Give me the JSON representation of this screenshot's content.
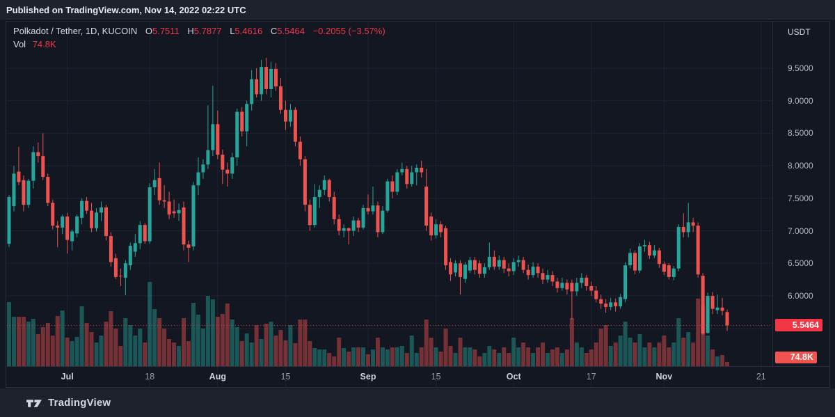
{
  "top_bar": {
    "text": "Published on TradingView.com, Nov 14, 2022 02:22 UTC"
  },
  "header": {
    "title": "Polkadot / Tether, 1D, KUCOIN",
    "o_label": "O",
    "o": "5.7511",
    "h_label": "H",
    "h": "5.7877",
    "l_label": "L",
    "l": "5.4616",
    "c_label": "C",
    "c": "5.5464",
    "change": "−0.2055 (−3.57%)",
    "vol_label": "Vol",
    "vol_value": "74.8K"
  },
  "price_axis": {
    "currency": "USDT",
    "tick_labels": [
      "9.5000",
      "9.0000",
      "8.5000",
      "8.0000",
      "7.5000",
      "7.0000",
      "6.5000",
      "6.0000"
    ],
    "last_price_badge": "5.5464",
    "volume_badge": "74.8K"
  },
  "footer": {
    "brand": "TradingView"
  },
  "colors": {
    "background": "#131722",
    "panel": "#1e222d",
    "border": "#2a2e39",
    "grid": "#1e2331",
    "up": "#26a69a",
    "down": "#ef5350",
    "up_volume": "rgba(38,166,154,0.45)",
    "down_volume": "rgba(239,83,80,0.45)",
    "accent_red": "#f23645",
    "text_primary": "#d1d4dc",
    "text_secondary": "#9598a1"
  },
  "chart_data": {
    "type": "candlestick_with_volume",
    "symbol": "Polkadot / Tether",
    "interval": "1D",
    "exchange": "KUCOIN",
    "quote_currency": "USDT",
    "legend_position": "top-left",
    "grid": true,
    "last_price": 5.5464,
    "last_volume_k": 74.8,
    "current_bar": {
      "open": 5.7511,
      "high": 5.7877,
      "low": 5.4616,
      "close": 5.5464,
      "change": -0.2055,
      "change_pct": -3.57,
      "volume": "74.8K"
    },
    "price_ticks": [
      9.5,
      9.0,
      8.5,
      8.0,
      7.5,
      7.0,
      6.5,
      6.0
    ],
    "unlabeled_grid": [
      5.5
    ],
    "ylim": [
      5.3,
      9.9
    ],
    "volume_unit": "K",
    "time_ticks": [
      {
        "label": "Jul",
        "index": 12,
        "major": true
      },
      {
        "label": "18",
        "index": 29,
        "major": false
      },
      {
        "label": "Aug",
        "index": 43,
        "major": true
      },
      {
        "label": "15",
        "index": 57,
        "major": false
      },
      {
        "label": "Sep",
        "index": 74,
        "major": true
      },
      {
        "label": "15",
        "index": 88,
        "major": false
      },
      {
        "label": "Oct",
        "index": 104,
        "major": true
      },
      {
        "label": "17",
        "index": 120,
        "major": false
      },
      {
        "label": "Nov",
        "index": 135,
        "major": true
      },
      {
        "label": "21",
        "index": 155,
        "major": false
      }
    ],
    "candles_format": [
      "open",
      "high",
      "low",
      "close",
      "volume_k"
    ],
    "candles": [
      [
        6.8,
        7.55,
        6.75,
        7.52,
        995
      ],
      [
        7.38,
        8.0,
        7.3,
        7.88,
        770
      ],
      [
        7.91,
        8.29,
        7.7,
        7.75,
        770
      ],
      [
        7.78,
        7.85,
        7.3,
        7.4,
        770
      ],
      [
        7.4,
        7.8,
        7.35,
        7.77,
        695
      ],
      [
        7.77,
        8.3,
        7.65,
        8.21,
        738
      ],
      [
        8.21,
        8.36,
        8.05,
        8.15,
        503
      ],
      [
        8.15,
        8.5,
        7.78,
        7.83,
        610
      ],
      [
        7.83,
        7.88,
        7.38,
        7.43,
        674
      ],
      [
        7.43,
        7.48,
        7.02,
        7.08,
        481
      ],
      [
        7.08,
        7.15,
        6.75,
        7.05,
        781
      ],
      [
        7.05,
        7.25,
        6.95,
        7.22,
        866
      ],
      [
        7.22,
        7.28,
        6.65,
        6.86,
        449
      ],
      [
        6.84,
        7.02,
        6.7,
        6.99,
        396
      ],
      [
        6.96,
        7.25,
        6.9,
        7.22,
        460
      ],
      [
        7.2,
        7.5,
        7.1,
        7.46,
        931
      ],
      [
        7.46,
        7.52,
        7.26,
        7.31,
        674
      ],
      [
        7.31,
        7.43,
        6.98,
        7.04,
        535
      ],
      [
        7.04,
        7.35,
        6.99,
        7.28,
        374
      ],
      [
        7.28,
        7.45,
        7.15,
        7.36,
        481
      ],
      [
        7.36,
        7.4,
        6.85,
        6.92,
        695
      ],
      [
        6.92,
        6.98,
        6.45,
        6.52,
        856
      ],
      [
        6.58,
        6.65,
        6.26,
        6.29,
        588
      ],
      [
        6.31,
        6.42,
        6.15,
        6.3,
        321
      ],
      [
        6.28,
        6.55,
        6.01,
        6.5,
        749
      ],
      [
        6.47,
        6.82,
        6.4,
        6.77,
        642
      ],
      [
        6.68,
        6.95,
        6.6,
        6.81,
        481
      ],
      [
        6.81,
        7.15,
        6.72,
        7.09,
        588
      ],
      [
        7.09,
        7.12,
        6.8,
        6.84,
        374
      ],
      [
        6.84,
        7.73,
        6.8,
        7.67,
        1305
      ],
      [
        7.67,
        7.95,
        7.55,
        7.78,
        888
      ],
      [
        7.81,
        8.05,
        7.4,
        7.47,
        749
      ],
      [
        7.47,
        7.7,
        7.35,
        7.45,
        588
      ],
      [
        7.45,
        7.6,
        7.18,
        7.25,
        428
      ],
      [
        7.3,
        7.48,
        7.2,
        7.27,
        374
      ],
      [
        7.27,
        7.42,
        7.15,
        7.32,
        321
      ],
      [
        7.36,
        7.45,
        6.7,
        6.79,
        749
      ],
      [
        6.79,
        6.85,
        6.52,
        6.74,
        396
      ],
      [
        6.76,
        7.75,
        6.7,
        7.7,
        984
      ],
      [
        7.7,
        8.13,
        7.55,
        7.9,
        803
      ],
      [
        7.9,
        8.1,
        7.8,
        8.02,
        588
      ],
      [
        8.02,
        8.93,
        7.95,
        8.24,
        1091
      ],
      [
        8.24,
        9.23,
        8.15,
        8.64,
        1038
      ],
      [
        8.64,
        8.85,
        8.1,
        8.17,
        770
      ],
      [
        8.17,
        8.25,
        7.72,
        7.94,
        813
      ],
      [
        7.94,
        8.05,
        7.68,
        7.88,
        974
      ],
      [
        7.88,
        8.2,
        7.8,
        8.13,
        728
      ],
      [
        8.13,
        8.88,
        8.0,
        8.83,
        610
      ],
      [
        8.83,
        8.9,
        8.45,
        8.53,
        396
      ],
      [
        8.53,
        9.0,
        8.3,
        8.95,
        514
      ],
      [
        8.95,
        9.47,
        8.85,
        9.33,
        374
      ],
      [
        9.33,
        9.5,
        9.05,
        9.1,
        642
      ],
      [
        9.1,
        9.63,
        9.0,
        9.52,
        428
      ],
      [
        9.52,
        9.66,
        9.1,
        9.18,
        663
      ],
      [
        9.18,
        9.6,
        9.05,
        9.49,
        695
      ],
      [
        9.49,
        9.58,
        9.15,
        9.22,
        481
      ],
      [
        9.22,
        9.35,
        8.8,
        8.86,
        567
      ],
      [
        8.86,
        9.0,
        8.55,
        8.68,
        407
      ],
      [
        8.68,
        8.95,
        8.6,
        8.86,
        642
      ],
      [
        8.86,
        8.9,
        8.3,
        8.37,
        364
      ],
      [
        8.37,
        8.45,
        8.0,
        8.1,
        728
      ],
      [
        8.1,
        8.15,
        7.3,
        7.4,
        728
      ],
      [
        7.4,
        7.48,
        7.0,
        7.09,
        396
      ],
      [
        7.09,
        7.72,
        7.05,
        7.52,
        289
      ],
      [
        7.52,
        7.7,
        7.35,
        7.63,
        268
      ],
      [
        7.63,
        7.85,
        7.55,
        7.78,
        268
      ],
      [
        7.78,
        7.8,
        7.45,
        7.52,
        214
      ],
      [
        7.52,
        7.6,
        7.1,
        7.18,
        160
      ],
      [
        7.18,
        7.25,
        6.93,
        7.0,
        449
      ],
      [
        7.0,
        7.1,
        6.9,
        7.04,
        289
      ],
      [
        7.04,
        7.05,
        6.79,
        7.0,
        235
      ],
      [
        7.0,
        7.22,
        6.92,
        7.16,
        300
      ],
      [
        7.16,
        7.2,
        6.98,
        7.05,
        300
      ],
      [
        7.05,
        7.4,
        7.02,
        7.35,
        300
      ],
      [
        7.35,
        7.56,
        7.25,
        7.3,
        193
      ],
      [
        7.3,
        7.68,
        7.25,
        7.39,
        268
      ],
      [
        7.39,
        7.45,
        6.9,
        6.98,
        449
      ],
      [
        6.98,
        7.38,
        6.95,
        7.31,
        300
      ],
      [
        7.31,
        7.8,
        7.28,
        7.76,
        268
      ],
      [
        7.76,
        7.85,
        7.5,
        7.6,
        300
      ],
      [
        7.6,
        7.95,
        7.55,
        7.9,
        300
      ],
      [
        7.9,
        8.05,
        7.85,
        7.95,
        321
      ],
      [
        7.95,
        8.0,
        7.65,
        7.72,
        214
      ],
      [
        7.72,
        8.0,
        7.68,
        7.9,
        481
      ],
      [
        7.9,
        8.02,
        7.7,
        7.97,
        214
      ],
      [
        7.97,
        8.08,
        7.82,
        7.9,
        300
      ],
      [
        7.68,
        7.95,
        7.0,
        7.08,
        728
      ],
      [
        7.22,
        7.28,
        6.85,
        6.93,
        449
      ],
      [
        6.93,
        7.18,
        6.88,
        7.1,
        300
      ],
      [
        7.1,
        7.15,
        6.9,
        6.98,
        235
      ],
      [
        7.04,
        7.08,
        6.4,
        6.47,
        588
      ],
      [
        6.52,
        6.58,
        6.23,
        6.33,
        321
      ],
      [
        6.36,
        6.55,
        6.3,
        6.5,
        214
      ],
      [
        6.5,
        6.55,
        6.02,
        6.29,
        449
      ],
      [
        6.26,
        6.52,
        6.2,
        6.48,
        300
      ],
      [
        6.39,
        6.6,
        6.35,
        6.55,
        300
      ],
      [
        6.55,
        6.6,
        6.33,
        6.4,
        268
      ],
      [
        6.5,
        6.55,
        6.28,
        6.34,
        160
      ],
      [
        6.34,
        6.5,
        6.28,
        6.44,
        214
      ],
      [
        6.44,
        6.82,
        6.4,
        6.6,
        321
      ],
      [
        6.6,
        6.7,
        6.4,
        6.45,
        268
      ],
      [
        6.45,
        6.62,
        6.4,
        6.55,
        214
      ],
      [
        6.55,
        6.6,
        6.35,
        6.42,
        300
      ],
      [
        6.42,
        6.5,
        6.3,
        6.38,
        214
      ],
      [
        6.38,
        6.58,
        6.32,
        6.52,
        449
      ],
      [
        6.52,
        6.62,
        6.45,
        6.55,
        300
      ],
      [
        6.55,
        6.6,
        6.35,
        6.4,
        374
      ],
      [
        6.4,
        6.48,
        6.25,
        6.32,
        300
      ],
      [
        6.32,
        6.52,
        6.28,
        6.45,
        214
      ],
      [
        6.45,
        6.5,
        6.28,
        6.35,
        300
      ],
      [
        6.35,
        6.42,
        6.18,
        6.25,
        374
      ],
      [
        6.25,
        6.4,
        6.2,
        6.32,
        214
      ],
      [
        6.32,
        6.38,
        6.15,
        6.22,
        268
      ],
      [
        6.22,
        6.28,
        6.05,
        6.12,
        300
      ],
      [
        6.12,
        6.28,
        6.08,
        6.2,
        214
      ],
      [
        6.2,
        6.25,
        6.02,
        6.1,
        268
      ],
      [
        6.2,
        6.25,
        5.64,
        6.07,
        749
      ],
      [
        6.07,
        6.28,
        6.0,
        6.2,
        374
      ],
      [
        6.2,
        6.35,
        6.12,
        6.28,
        300
      ],
      [
        6.28,
        6.32,
        6.08,
        6.15,
        214
      ],
      [
        6.15,
        6.22,
        6.0,
        6.08,
        268
      ],
      [
        6.08,
        6.15,
        5.9,
        5.95,
        374
      ],
      [
        5.95,
        6.02,
        5.8,
        5.88,
        588
      ],
      [
        5.88,
        5.95,
        5.74,
        5.83,
        642
      ],
      [
        5.83,
        5.97,
        5.78,
        5.9,
        321
      ],
      [
        5.9,
        5.96,
        5.76,
        5.84,
        374
      ],
      [
        5.84,
        6.03,
        5.8,
        5.98,
        481
      ],
      [
        5.95,
        6.52,
        5.9,
        6.47,
        695
      ],
      [
        6.47,
        6.73,
        6.42,
        6.66,
        449
      ],
      [
        6.66,
        6.7,
        6.33,
        6.39,
        374
      ],
      [
        6.39,
        6.81,
        6.35,
        6.76,
        503
      ],
      [
        6.76,
        6.86,
        6.68,
        6.78,
        300
      ],
      [
        6.78,
        6.83,
        6.57,
        6.62,
        374
      ],
      [
        6.62,
        6.78,
        6.58,
        6.7,
        300
      ],
      [
        6.7,
        6.74,
        6.43,
        6.49,
        374
      ],
      [
        6.49,
        6.53,
        6.32,
        6.37,
        481
      ],
      [
        6.47,
        6.5,
        6.25,
        6.29,
        300
      ],
      [
        6.29,
        6.46,
        6.24,
        6.42,
        374
      ],
      [
        6.42,
        7.1,
        6.38,
        7.06,
        749
      ],
      [
        7.06,
        7.27,
        6.9,
        6.98,
        449
      ],
      [
        6.98,
        7.43,
        6.9,
        7.13,
        535
      ],
      [
        7.13,
        7.2,
        6.98,
        7.08,
        374
      ],
      [
        7.08,
        7.13,
        6.28,
        6.33,
        1049
      ],
      [
        6.31,
        6.35,
        5.4,
        5.42,
        942
      ],
      [
        5.43,
        6.05,
        5.42,
        6.0,
        481
      ],
      [
        6.0,
        6.06,
        5.72,
        5.8,
        268
      ],
      [
        5.78,
        6.02,
        5.72,
        5.82,
        160
      ],
      [
        5.82,
        5.97,
        5.7,
        5.77,
        182
      ],
      [
        5.7511,
        5.7877,
        5.4616,
        5.5464,
        74.8
      ]
    ]
  }
}
